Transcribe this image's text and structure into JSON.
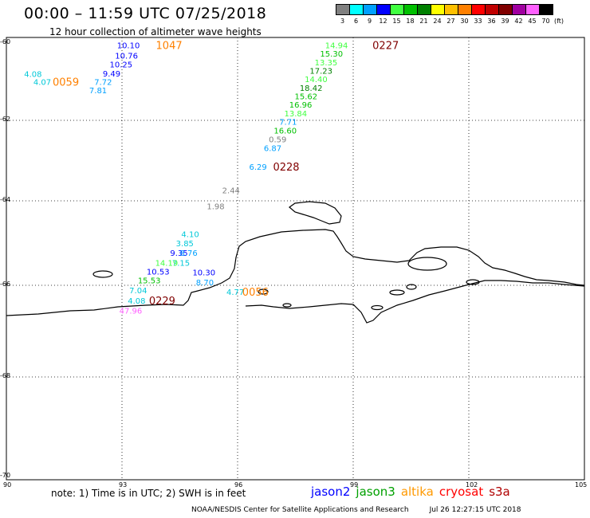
{
  "title": "00:00 – 11:59 UTC 07/25/2018",
  "subtitle": "12 hour collection of altimeter wave heights",
  "legend": {
    "unit": "(ft)",
    "items": [
      {
        "label": "3",
        "color": "#808080"
      },
      {
        "label": "6",
        "color": "#00ffff"
      },
      {
        "label": "9",
        "color": "#00a0ff"
      },
      {
        "label": "12",
        "color": "#0000ff"
      },
      {
        "label": "15",
        "color": "#40ff40"
      },
      {
        "label": "18",
        "color": "#00c000"
      },
      {
        "label": "21",
        "color": "#008000"
      },
      {
        "label": "24",
        "color": "#ffff00"
      },
      {
        "label": "27",
        "color": "#ffc000"
      },
      {
        "label": "30",
        "color": "#ff8000"
      },
      {
        "label": "33",
        "color": "#ff0000"
      },
      {
        "label": "36",
        "color": "#c00000"
      },
      {
        "label": "39",
        "color": "#800000"
      },
      {
        "label": "42",
        "color": "#a000a0"
      },
      {
        "label": "45",
        "color": "#ff60ff"
      },
      {
        "label": "70",
        "color": "#000000"
      }
    ]
  },
  "axes": {
    "lon_ticks": [
      "90",
      "93",
      "96",
      "99",
      "102",
      "105"
    ],
    "lat_ticks": [
      "-60",
      "-62",
      "-64",
      "-66",
      "-68",
      "-70"
    ]
  },
  "chart_data": {
    "type": "scatter",
    "xlim": [
      90,
      105
    ],
    "ylim": [
      -70,
      -59.2
    ],
    "x_unit": "degrees longitude",
    "y_unit": "degrees latitude",
    "grid": "dotted",
    "points": [
      {
        "lon": 92.87,
        "lat": -60.05,
        "label": "10.10",
        "color": "#0000ff"
      },
      {
        "lon": 92.82,
        "lat": -60.32,
        "label": "10.76",
        "color": "#0000ff"
      },
      {
        "lon": 92.68,
        "lat": -60.55,
        "label": "10.25",
        "color": "#0000ff"
      },
      {
        "lon": 92.5,
        "lat": -60.78,
        "label": "9.49",
        "color": "#0000ff"
      },
      {
        "lon": 92.28,
        "lat": -61.0,
        "label": "7.72",
        "color": "#00a0ff"
      },
      {
        "lon": 92.15,
        "lat": -61.22,
        "label": "7.81",
        "color": "#00a0ff"
      },
      {
        "lon": 90.46,
        "lat": -60.79,
        "label": "4.08",
        "color": "#00c8d8"
      },
      {
        "lon": 90.7,
        "lat": -61.0,
        "label": "4.07",
        "color": "#00c8d8"
      },
      {
        "lon": 98.27,
        "lat": -60.05,
        "label": "14.94",
        "color": "#40ff40"
      },
      {
        "lon": 98.14,
        "lat": -60.27,
        "label": "15.30",
        "color": "#00c000"
      },
      {
        "lon": 98.0,
        "lat": -60.49,
        "label": "13.35",
        "color": "#40ff40"
      },
      {
        "lon": 97.87,
        "lat": -60.71,
        "label": "17.23",
        "color": "#008000"
      },
      {
        "lon": 97.74,
        "lat": -60.93,
        "label": "14.40",
        "color": "#40ff40"
      },
      {
        "lon": 97.61,
        "lat": -61.15,
        "label": "18.42",
        "color": "#008000"
      },
      {
        "lon": 97.48,
        "lat": -61.37,
        "label": "15.62",
        "color": "#00c000"
      },
      {
        "lon": 97.34,
        "lat": -61.59,
        "label": "16.96",
        "color": "#00c000"
      },
      {
        "lon": 97.21,
        "lat": -61.81,
        "label": "13.84",
        "color": "#40ff40"
      },
      {
        "lon": 97.08,
        "lat": -62.03,
        "label": "7.71",
        "color": "#00a0ff"
      },
      {
        "lon": 96.94,
        "lat": -62.25,
        "label": "16.60",
        "color": "#00c000"
      },
      {
        "lon": 96.81,
        "lat": -62.47,
        "label": "0.59",
        "color": "#808080"
      },
      {
        "lon": 96.68,
        "lat": -62.68,
        "label": "6.87",
        "color": "#00a0ff"
      },
      {
        "lon": 96.3,
        "lat": -63.15,
        "label": "6.29",
        "color": "#00a0ff"
      },
      {
        "lon": 95.6,
        "lat": -63.73,
        "label": "2.44",
        "color": "#808080"
      },
      {
        "lon": 95.2,
        "lat": -64.12,
        "label": "1.98",
        "color": "#808080"
      },
      {
        "lon": 94.54,
        "lat": -64.78,
        "label": "4.10",
        "color": "#00c8d8"
      },
      {
        "lon": 94.4,
        "lat": -65.0,
        "label": "3.85",
        "color": "#00c8d8"
      },
      {
        "lon": 94.25,
        "lat": -65.23,
        "label": "9.35",
        "color": "#0000ff"
      },
      {
        "lon": 94.5,
        "lat": -65.23,
        "label": "8.76",
        "color": "#00a0ff"
      },
      {
        "lon": 94.3,
        "lat": -65.46,
        "label": "7.15",
        "color": "#00c8d8"
      },
      {
        "lon": 93.86,
        "lat": -65.46,
        "label": "14.19",
        "color": "#40ff40"
      },
      {
        "lon": 93.64,
        "lat": -65.67,
        "label": "10.53",
        "color": "#0000ff"
      },
      {
        "lon": 94.83,
        "lat": -65.69,
        "label": "10.30",
        "color": "#0000ff"
      },
      {
        "lon": 93.41,
        "lat": -65.88,
        "label": "15.53",
        "color": "#00c000"
      },
      {
        "lon": 94.92,
        "lat": -65.92,
        "label": "8.70",
        "color": "#00a0ff"
      },
      {
        "lon": 93.19,
        "lat": -66.1,
        "label": "7.04",
        "color": "#00c8d8"
      },
      {
        "lon": 93.15,
        "lat": -66.33,
        "label": "4.08",
        "color": "#00c8d8"
      },
      {
        "lon": 92.93,
        "lat": -66.55,
        "label": "47.96",
        "color": "#ff60ff"
      },
      {
        "lon": 95.71,
        "lat": -66.14,
        "label": "4.77",
        "color": "#00c8d8"
      }
    ],
    "time_labels": [
      {
        "lon": 93.88,
        "lat": -60.05,
        "label": "1047",
        "color": "#ff8000"
      },
      {
        "lon": 91.2,
        "lat": -61.0,
        "label": "0059",
        "color": "#ff8000"
      },
      {
        "lon": 99.5,
        "lat": -60.05,
        "label": "0227",
        "color": "#800000"
      },
      {
        "lon": 96.92,
        "lat": -63.15,
        "label": "0228",
        "color": "#800000"
      },
      {
        "lon": 93.7,
        "lat": -66.33,
        "label": "0229",
        "color": "#800000"
      },
      {
        "lon": 96.12,
        "lat": -66.14,
        "label": "0056",
        "color": "#ff8000"
      }
    ]
  },
  "note": "note:  1) Time is in UTC;  2) SWH is in feet",
  "satellites": [
    {
      "name": "jason2",
      "color": "#0000ff"
    },
    {
      "name": "jason3",
      "color": "#00a000"
    },
    {
      "name": "altika",
      "color": "#ff9900"
    },
    {
      "name": "cryosat",
      "color": "#ff0000"
    },
    {
      "name": "s3a",
      "color": "#b00000"
    }
  ],
  "credit": {
    "source": "NOAA/NESDIS Center for Satellite Applications and Research",
    "generated": "Jul 26 12:27:15 UTC 2018"
  }
}
